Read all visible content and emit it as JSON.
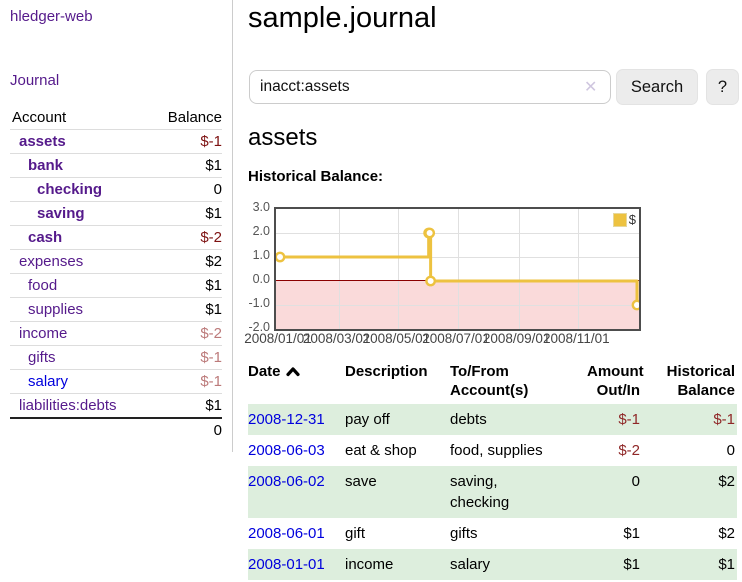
{
  "app": {
    "brand": "hledger-web",
    "nav_journal": "Journal"
  },
  "sidebar": {
    "header": {
      "account": "Account",
      "balance": "Balance"
    },
    "accounts": [
      {
        "name": "assets",
        "balance": "$-1"
      },
      {
        "name": "bank",
        "balance": "$1"
      },
      {
        "name": "checking",
        "balance": "0"
      },
      {
        "name": "saving",
        "balance": "$1"
      },
      {
        "name": "cash",
        "balance": "$-2"
      },
      {
        "name": "expenses",
        "balance": "$2"
      },
      {
        "name": "food",
        "balance": "$1"
      },
      {
        "name": "supplies",
        "balance": "$1"
      },
      {
        "name": "income",
        "balance": "$-2"
      },
      {
        "name": "gifts",
        "balance": "$-1"
      },
      {
        "name": "salary",
        "balance": "$-1"
      },
      {
        "name": "liabilities:debts",
        "balance": "$1"
      }
    ],
    "total": "0"
  },
  "header": {
    "title": "sample.journal"
  },
  "search": {
    "value": "inacct:assets",
    "clear_icon": "✕",
    "button": "Search",
    "help_button": "?"
  },
  "account_page": {
    "title": "assets",
    "chart_label": "Historical Balance:"
  },
  "chart_data": {
    "type": "line",
    "title": "Historical Balance:",
    "steps": true,
    "series": [
      {
        "name": "$",
        "color": "#edc240",
        "points": [
          [
            "2008/01/01",
            1
          ],
          [
            "2008/06/01",
            2
          ],
          [
            "2008/06/02",
            2
          ],
          [
            "2008/06/03",
            0
          ],
          [
            "2008/12/31",
            -1
          ]
        ]
      }
    ],
    "x_ticks": [
      "2008/01/01",
      "2008/03/01",
      "2008/05/01",
      "2008/07/01",
      "2008/09/01",
      "2008/11/01"
    ],
    "y_ticks": [
      "3.0",
      "2.0",
      "1.0",
      "0.0",
      "-1.0",
      "-2.0"
    ],
    "ylim": [
      -2,
      3
    ],
    "xlim": [
      "2008/01/01",
      "2008/12/31"
    ],
    "legend_position": "top-right",
    "grid": true,
    "negative_region_color": "#fadada",
    "zero_line_color": "#8b0000"
  },
  "transactions": {
    "headers": {
      "date": "Date",
      "description": "Description",
      "accounts": "To/From\nAccount(s)",
      "amount": "Amount\nOut/In",
      "balance": "Historical\nBalance"
    },
    "rows": [
      {
        "date": "2008-12-31",
        "description": "pay off",
        "accounts": "debts",
        "amount": "$-1",
        "balance": "$-1"
      },
      {
        "date": "2008-06-03",
        "description": "eat & shop",
        "accounts": "food, supplies",
        "amount": "$-2",
        "balance": "0"
      },
      {
        "date": "2008-06-02",
        "description": "save",
        "accounts": "saving,\nchecking",
        "amount": "0",
        "balance": "$2"
      },
      {
        "date": "2008-06-01",
        "description": "gift",
        "accounts": "gifts",
        "amount": "$1",
        "balance": "$2"
      },
      {
        "date": "2008-01-01",
        "description": "income",
        "accounts": "salary",
        "amount": "$1",
        "balance": "$1"
      }
    ]
  }
}
